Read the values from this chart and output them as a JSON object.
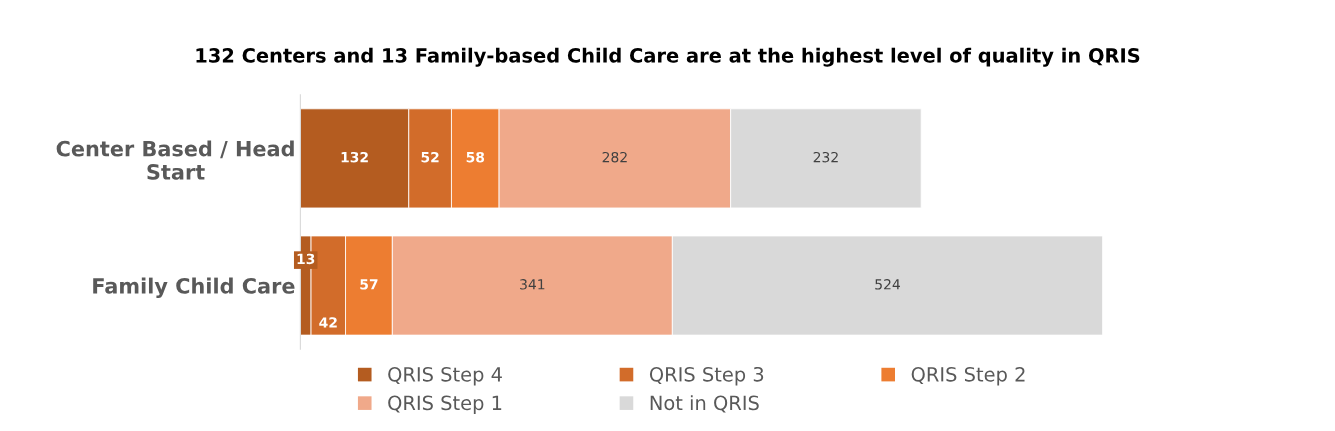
{
  "chart_data": {
    "type": "bar",
    "orientation": "horizontal",
    "stacked": true,
    "title": "132 Centers and 13 Family-based Child Care are at the highest level of quality in QRIS",
    "categories": [
      "Center Based / Head Start",
      "Family Child Care"
    ],
    "series": [
      {
        "name": "QRIS Step 4",
        "color": "#b45c20",
        "values": [
          132,
          13
        ]
      },
      {
        "name": "QRIS Step 3",
        "color": "#d26c2a",
        "values": [
          52,
          42
        ]
      },
      {
        "name": "QRIS Step 2",
        "color": "#ed7d31",
        "values": [
          58,
          57
        ]
      },
      {
        "name": "QRIS Step 1",
        "color": "#f0a98a",
        "values": [
          282,
          341
        ]
      },
      {
        "name": "Not in QRIS",
        "color": "#d9d9d9",
        "values": [
          232,
          524
        ]
      }
    ],
    "data_labels": true,
    "legend": "bottom",
    "tick_labels": "y",
    "grid": false
  }
}
